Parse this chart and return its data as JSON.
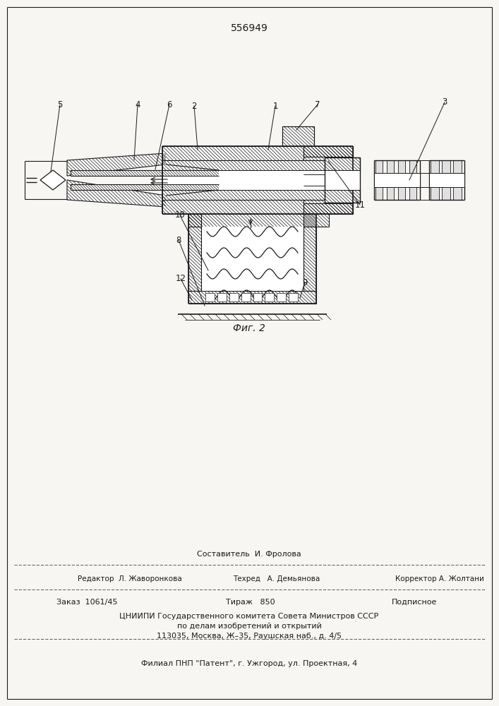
{
  "patent_number": "556949",
  "fig_label": "Фиг. 2",
  "bg_color": "#f5f3ef",
  "paper_color": "#f8f6f2",
  "line_color": "#1a1a1a",
  "footer_composer": "Составитель  И. Фролова",
  "footer_editor": "Редактор  Л. Жаворонкова",
  "footer_techred": "Техред   А. Демьянова",
  "footer_corrector": "Корректор А. Жолтани",
  "footer_order": "Заказ  1061/45",
  "footer_tirazh": "Тираж   850",
  "footer_podpisnoe": "Подписное",
  "footer_cniipи": "ЦНИИПИ Государственного комитета Совета Министров СССР",
  "footer_dela": "по делам изобретений и открытий",
  "footer_addr": "113035, Москва, Ж–35, Раушская наб., д. 4/5",
  "footer_filial": "Филиал ПНП \"Патент\", г. Ужгород, ул. Проектная, 4"
}
